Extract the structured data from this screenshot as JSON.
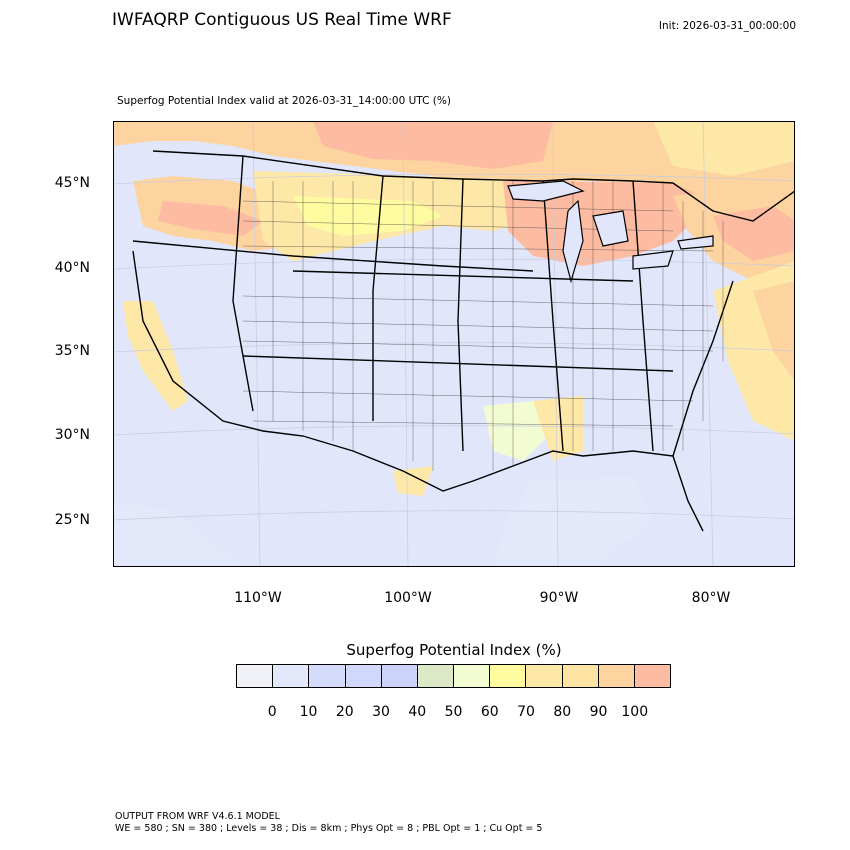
{
  "header": {
    "title": "IWFAQRP Contiguous US Real Time WRF",
    "init": "Init: 2026-03-31_00:00:00",
    "subtitle": "Superfog Potential Index valid at 2026-03-31_14:00:00 UTC   (%)"
  },
  "map": {
    "latitude_labels": [
      "45°N",
      "40°N",
      "35°N",
      "30°N",
      "25°N"
    ],
    "longitude_labels": [
      "110°W",
      "100°W",
      "90°W",
      "80°W"
    ]
  },
  "colorbar": {
    "title": "Superfog Potential Index  (%)",
    "tick_labels": [
      "0",
      "10",
      "20",
      "30",
      "40",
      "50",
      "60",
      "70",
      "80",
      "90",
      "100"
    ],
    "colors": [
      "#f0f2f8",
      "#e4e8fb",
      "#d5dcfb",
      "#d0d8fb",
      "#cbd3fb",
      "#dde8c6",
      "#f3fbd2",
      "#fefba0",
      "#fde8a8",
      "#fde4a2",
      "#fdd3a0",
      "#fdbba1"
    ]
  },
  "footer": {
    "line1": "OUTPUT FROM WRF V4.6.1 MODEL",
    "line2": "WE = 580 ; SN = 380 ; Levels = 38 ; Dis = 8km ; Phys Opt = 8 ; PBL Opt = 1 ; Cu Opt = 5"
  }
}
